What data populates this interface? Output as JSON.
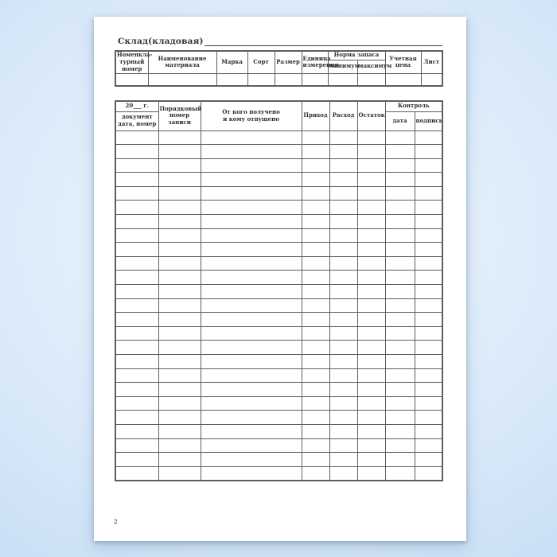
{
  "colors": {
    "bg_center": "#eff6fd",
    "bg_mid": "#dcebfa",
    "bg_edge": "#c8def4",
    "page_bg": "#ffffff",
    "border_col": "#5e5e5e",
    "text_col": "#2f2f2f"
  },
  "page": {
    "title": "Склад(кладовая)",
    "page_number": "2"
  },
  "materials_table": {
    "col_nomenclature": "Номенкла-\nтурный\nномер",
    "col_material_name": "Наименование\nматериала",
    "col_brand": "Марка",
    "col_grade": "Сорт",
    "col_size": "Размер",
    "col_unit": "Единица\nизмерения",
    "col_stock_norm": "Норма запаса",
    "col_min": "минимум",
    "col_max": "максимум",
    "col_price": "Учетная\nцена",
    "col_sheet": "Лист",
    "body_row_count": 1,
    "column_count": 10
  },
  "ledger_table": {
    "col_year": "20___ г.",
    "col_document": "документ\nдата, номер",
    "col_entry_number": "Порядковый\nномер записи",
    "col_counterparty": "От кого получено\nи кому отпущено",
    "col_income": "Приход",
    "col_expense": "Расход",
    "col_balance": "Остаток",
    "col_control": "Контроль",
    "col_date": "дата",
    "col_signature": "подпись",
    "body_row_count": 25,
    "column_count": 8
  }
}
